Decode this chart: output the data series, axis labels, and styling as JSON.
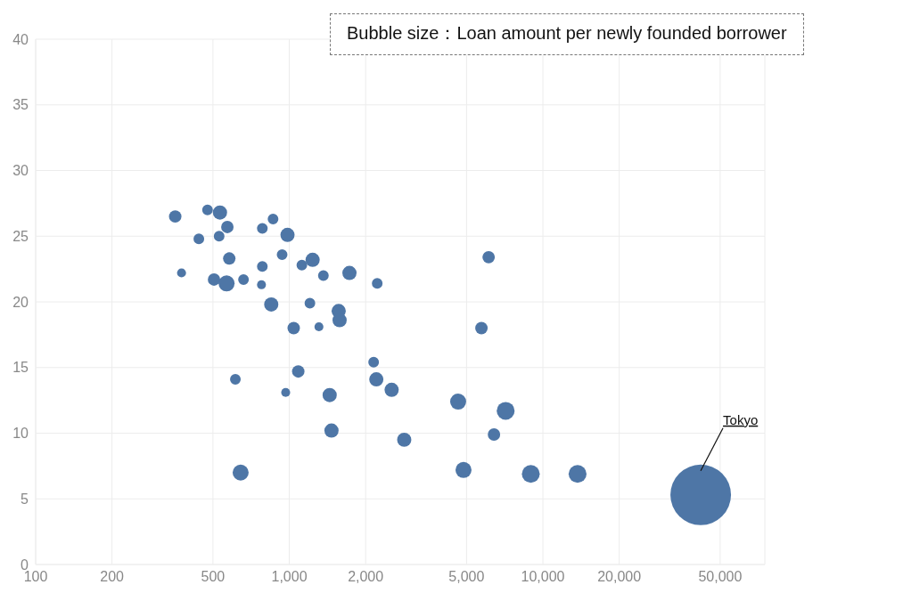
{
  "chart_data": {
    "type": "bubble",
    "log": "x",
    "grid": true,
    "annotations": [
      "Bubble size：Loan amount per newly founded borrower",
      "Tokyo"
    ],
    "xlim": [
      100,
      75000
    ],
    "xticks": [
      100,
      200,
      500,
      {
        "value": 1000,
        "label": "1,000"
      },
      {
        "value": 2000,
        "label": "2,000"
      },
      {
        "value": 5000,
        "label": "5,000"
      },
      {
        "value": 10000,
        "label": "10,000"
      },
      {
        "value": 20000,
        "label": "20,000"
      },
      {
        "value": 50000,
        "label": "50,000"
      }
    ],
    "ylim": [
      0,
      40
    ],
    "yticks": [
      0,
      5,
      10,
      15,
      20,
      25,
      30,
      35,
      40
    ],
    "series": [
      {
        "color": "#4e76a6",
        "x": [
          355,
          376,
          476,
          440,
          533,
          529,
          570,
          580,
          505,
          566,
          660,
          613,
          643,
          783,
          863,
          984,
          937,
          783,
          777,
          849,
          1041,
          968,
          1085,
          1121,
          1236,
          1363,
          1206,
          1309,
          1727,
          1566,
          1579,
          1443,
          1467,
          2151,
          2222,
          2204,
          2533,
          2839,
          4633,
          4864,
          6111,
          5724,
          6414,
          7131,
          8960,
          13700,
          41900
        ],
        "values": [
          26.5,
          22.2,
          27.0,
          24.8,
          26.8,
          25.0,
          25.7,
          23.3,
          21.7,
          21.4,
          21.7,
          14.1,
          7.0,
          25.6,
          26.3,
          25.1,
          23.6,
          22.7,
          21.3,
          19.8,
          18.0,
          13.1,
          14.7,
          22.8,
          23.2,
          22.0,
          19.9,
          18.1,
          22.2,
          19.3,
          18.6,
          12.9,
          10.2,
          15.4,
          21.4,
          14.1,
          13.3,
          9.5,
          12.4,
          7.2,
          23.4,
          18.0,
          9.9,
          11.7,
          6.9,
          6.9,
          5.3
        ],
        "sizes": [
          0.042,
          0.022,
          0.031,
          0.031,
          0.055,
          0.031,
          0.042,
          0.042,
          0.042,
          0.07,
          0.031,
          0.031,
          0.07,
          0.031,
          0.031,
          0.055,
          0.031,
          0.031,
          0.022,
          0.055,
          0.042,
          0.022,
          0.042,
          0.031,
          0.055,
          0.031,
          0.031,
          0.022,
          0.055,
          0.055,
          0.055,
          0.055,
          0.055,
          0.031,
          0.031,
          0.055,
          0.055,
          0.055,
          0.07,
          0.07,
          0.042,
          0.042,
          0.042,
          0.087,
          0.087,
          0.087,
          1
        ]
      }
    ]
  }
}
